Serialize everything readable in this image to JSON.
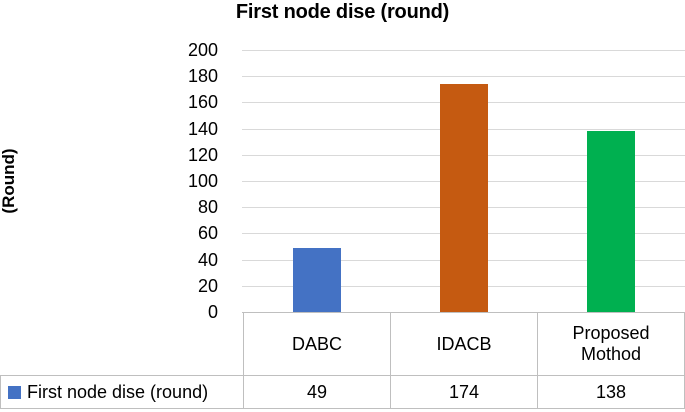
{
  "chart_data": {
    "type": "bar",
    "title": "First node dise (round)",
    "xlabel": "",
    "ylabel": "(Round)",
    "categories": [
      "DABC",
      "IDACB",
      "Proposed Mothod"
    ],
    "series": [
      {
        "name": "First node dise (round)",
        "values": [
          49,
          174,
          138
        ],
        "colors": [
          "#4472C4",
          "#C55A11",
          "#00B050"
        ]
      }
    ],
    "ylim": [
      0,
      200
    ],
    "ytick_step": 20,
    "yticks": [
      "200",
      "180",
      "160",
      "140",
      "120",
      "100",
      "80",
      "60",
      "40",
      "20",
      "0"
    ],
    "grid": true,
    "gridline_color": "#D9D9D9",
    "legend_position": "bottom-data-table"
  },
  "data_table": {
    "legend": {
      "label": "First node dise (round)",
      "marker_color": "#4472C4"
    },
    "columns": [
      "DABC",
      "IDACB",
      "Proposed Mothod"
    ],
    "values": [
      "49",
      "174",
      "138"
    ]
  }
}
